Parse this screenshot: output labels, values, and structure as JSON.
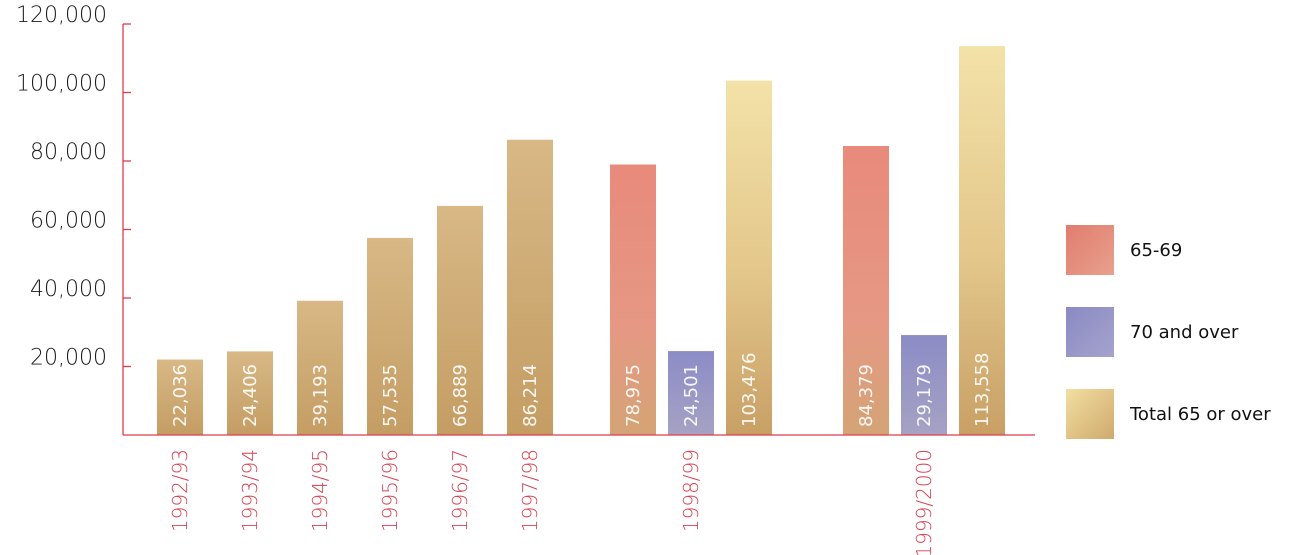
{
  "chart_data": {
    "type": "bar",
    "ylim": [
      0,
      120000
    ],
    "yticks": [
      {
        "value": 20000,
        "label": "20,000"
      },
      {
        "value": 40000,
        "label": "40,000"
      },
      {
        "value": 60000,
        "label": "60,000"
      },
      {
        "value": 80000,
        "label": "80,000"
      },
      {
        "value": 100000,
        "label": "100,000"
      },
      {
        "value": 120000,
        "label": "120,000"
      }
    ],
    "series": [
      {
        "key": "s6569",
        "name": "65-69",
        "color": "#e0827a"
      },
      {
        "key": "s70",
        "name": "70 and over",
        "color": "#8f8fc2"
      },
      {
        "key": "total",
        "name": "Total 65 or over",
        "color": "#d6b27a"
      }
    ],
    "groups": [
      {
        "category": "1992/93",
        "bars": [
          {
            "series": "total",
            "value": 22036,
            "label": "22,036",
            "tone": "early"
          }
        ]
      },
      {
        "category": "1993/94",
        "bars": [
          {
            "series": "total",
            "value": 24406,
            "label": "24,406",
            "tone": "early"
          }
        ]
      },
      {
        "category": "1994/95",
        "bars": [
          {
            "series": "total",
            "value": 39193,
            "label": "39,193",
            "tone": "early"
          }
        ]
      },
      {
        "category": "1995/96",
        "bars": [
          {
            "series": "total",
            "value": 57535,
            "label": "57,535",
            "tone": "early"
          }
        ]
      },
      {
        "category": "1996/97",
        "bars": [
          {
            "series": "total",
            "value": 66889,
            "label": "66,889",
            "tone": "early"
          }
        ]
      },
      {
        "category": "1997/98",
        "bars": [
          {
            "series": "total",
            "value": 86214,
            "label": "86,214",
            "tone": "early"
          }
        ]
      },
      {
        "category": "1998/99",
        "bars": [
          {
            "series": "s6569",
            "value": 78975,
            "label": "78,975"
          },
          {
            "series": "s70",
            "value": 24501,
            "label": "24,501"
          },
          {
            "series": "total",
            "value": 103476,
            "label": "103,476"
          }
        ]
      },
      {
        "category": "1999/2000",
        "bars": [
          {
            "series": "s6569",
            "value": 84379,
            "label": "84,379"
          },
          {
            "series": "s70",
            "value": 29179,
            "label": "29,179"
          },
          {
            "series": "total",
            "value": 113558,
            "label": "113,558"
          }
        ]
      }
    ],
    "legend": {
      "placement": "right"
    },
    "axis_color": "#e03b4b"
  }
}
